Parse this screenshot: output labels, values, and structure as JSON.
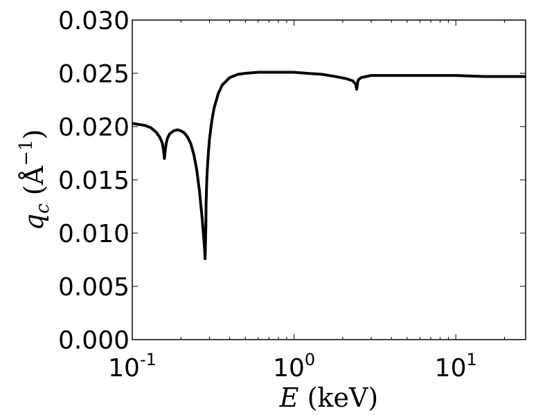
{
  "chart_data": {
    "type": "line",
    "title": "",
    "xlabel": {
      "symbol": "E",
      "unit": " (keV)"
    },
    "ylabel": {
      "symbol": "q",
      "subscript": "c",
      "unit_open": " (",
      "unit": "Å",
      "unit_exp": "−1",
      "unit_close": ")"
    },
    "x_scale": "log",
    "xlim": [
      0.1,
      27
    ],
    "ylim": [
      0.0,
      0.03
    ],
    "grid": false,
    "legend": "none",
    "line_color": "#000000",
    "x_ticks": [
      {
        "value": 0.1,
        "base": "10",
        "exp": "-1"
      },
      {
        "value": 1,
        "base": "10",
        "exp": "0"
      },
      {
        "value": 10,
        "base": "10",
        "exp": "1"
      }
    ],
    "y_ticks": [
      {
        "value": 0.0,
        "label": "0.000"
      },
      {
        "value": 0.005,
        "label": "0.005"
      },
      {
        "value": 0.01,
        "label": "0.010"
      },
      {
        "value": 0.015,
        "label": "0.015"
      },
      {
        "value": 0.02,
        "label": "0.020"
      },
      {
        "value": 0.025,
        "label": "0.025"
      },
      {
        "value": 0.03,
        "label": "0.030"
      }
    ],
    "series": [
      {
        "x": [
          0.1,
          0.11,
          0.12,
          0.13,
          0.14,
          0.148,
          0.153,
          0.156,
          0.158,
          0.16,
          0.162,
          0.165,
          0.17,
          0.18,
          0.19,
          0.2,
          0.21,
          0.22,
          0.23,
          0.24,
          0.25,
          0.26,
          0.27,
          0.275,
          0.28,
          0.282,
          0.284,
          0.285,
          0.286,
          0.287,
          0.288,
          0.29,
          0.295,
          0.3,
          0.31,
          0.32,
          0.34,
          0.36,
          0.4,
          0.45,
          0.5,
          0.6,
          0.7,
          0.8,
          1.0,
          1.2,
          1.5,
          1.8,
          2.1,
          2.3,
          2.4,
          2.44,
          2.47,
          2.5,
          2.6,
          2.8,
          3.0,
          3.5,
          4.0,
          5.0,
          7.0,
          10.0,
          15.0,
          20.0,
          27.0
        ],
        "y": [
          0.0203,
          0.0202,
          0.0201,
          0.0199,
          0.0195,
          0.019,
          0.0185,
          0.0178,
          0.017,
          0.0178,
          0.0184,
          0.0189,
          0.0193,
          0.0196,
          0.0197,
          0.0196,
          0.0194,
          0.019,
          0.0184,
          0.0174,
          0.016,
          0.014,
          0.0115,
          0.01,
          0.0085,
          0.0076,
          0.0096,
          0.0106,
          0.0128,
          0.0136,
          0.0144,
          0.0156,
          0.0174,
          0.0188,
          0.0205,
          0.0217,
          0.0231,
          0.0239,
          0.0246,
          0.0249,
          0.025,
          0.0251,
          0.0251,
          0.0251,
          0.0251,
          0.025,
          0.0249,
          0.0247,
          0.0245,
          0.0243,
          0.024,
          0.0235,
          0.0241,
          0.0244,
          0.0246,
          0.0247,
          0.0248,
          0.0248,
          0.0248,
          0.0248,
          0.0248,
          0.0248,
          0.0247,
          0.0247,
          0.0247
        ]
      }
    ]
  }
}
